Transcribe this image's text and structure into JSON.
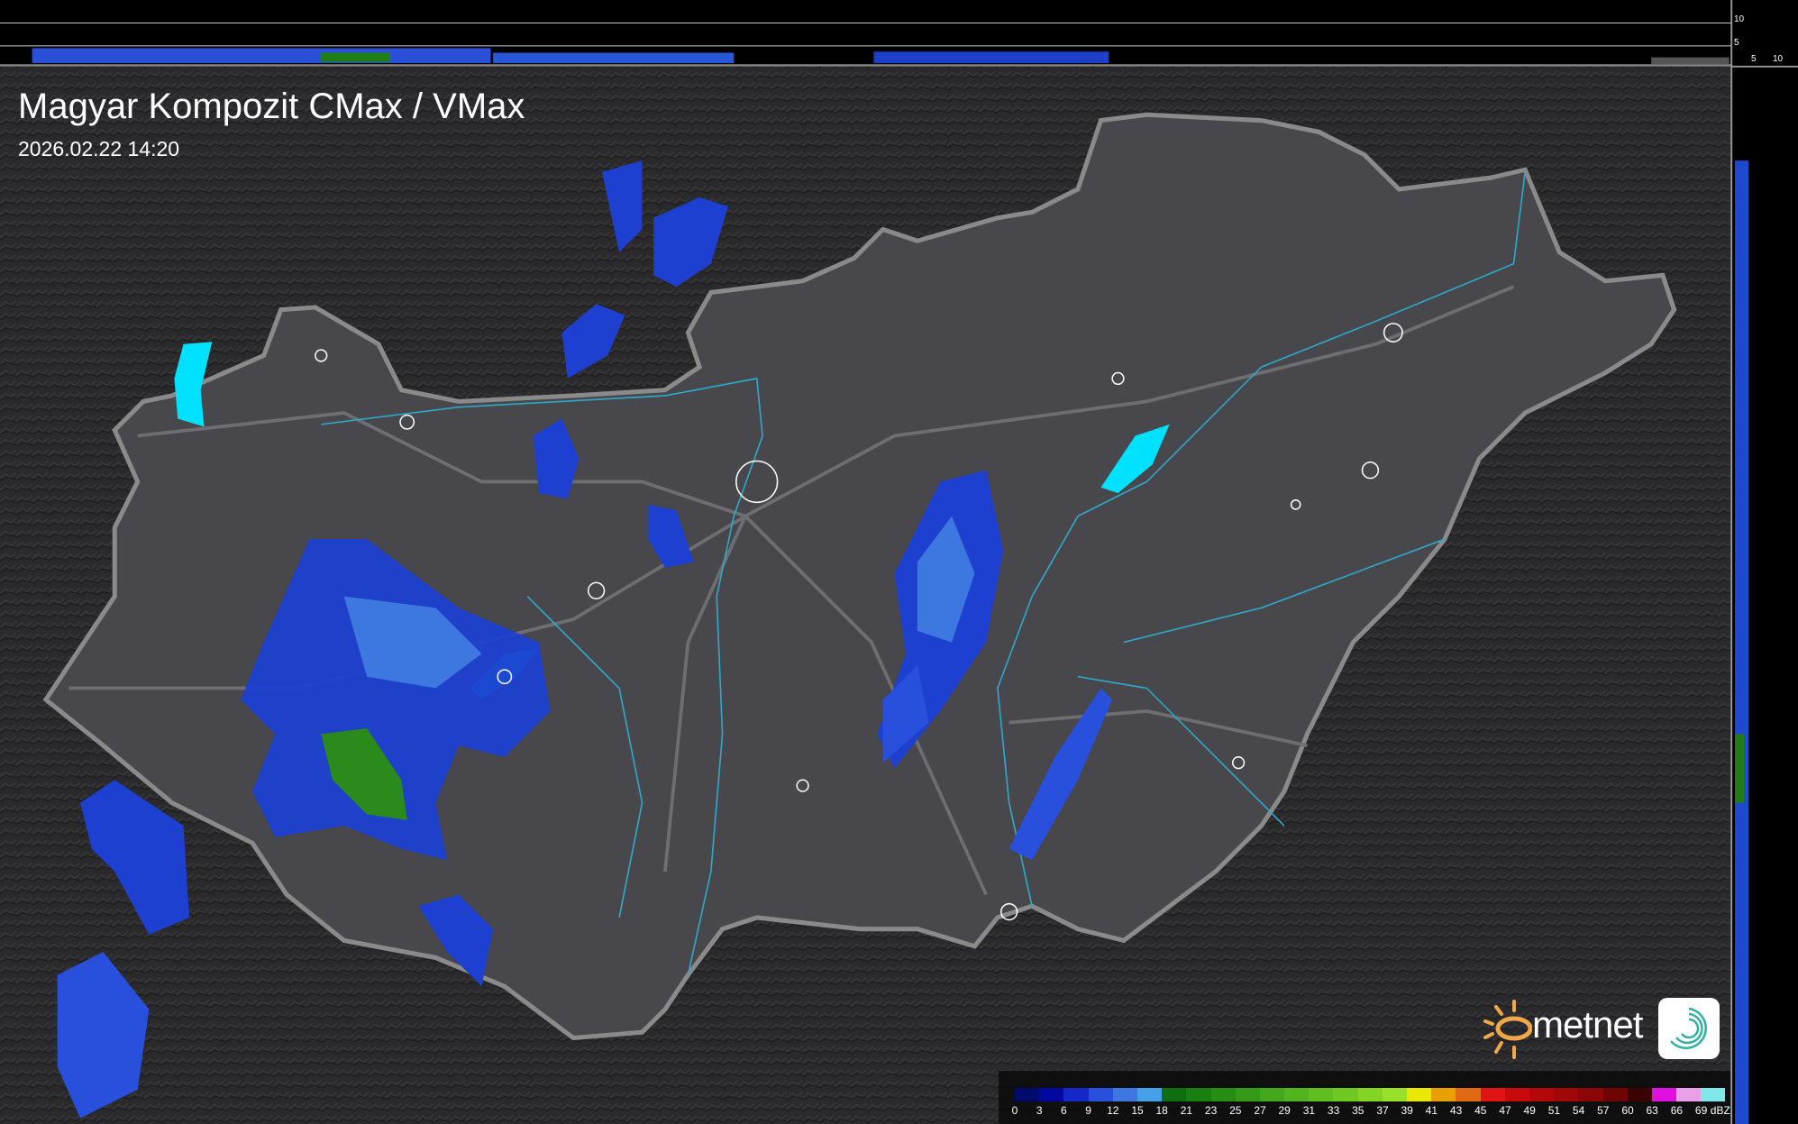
{
  "title": "Magyar Kompozit CMax / VMax",
  "timestamp": "2026.02.22 14:20",
  "legend": {
    "unit": "dBZ",
    "labels": [
      "0",
      "3",
      "6",
      "9",
      "12",
      "15",
      "18",
      "21",
      "23",
      "25",
      "27",
      "29",
      "31",
      "33",
      "35",
      "37",
      "39",
      "41",
      "43",
      "45",
      "47",
      "49",
      "51",
      "54",
      "57",
      "60",
      "63",
      "66",
      "69"
    ],
    "colors": [
      "#000a6a",
      "#0008a0",
      "#1428c8",
      "#2850dc",
      "#3c78e0",
      "#46a0e8",
      "#0f6e0f",
      "#1a7e10",
      "#268c14",
      "#349a18",
      "#44a81c",
      "#52b41e",
      "#60be20",
      "#70c822",
      "#84d424",
      "#98e02a",
      "#e8e800",
      "#e8a000",
      "#e06a14",
      "#e01414",
      "#c80a0a",
      "#b40808",
      "#a00808",
      "#8c0606",
      "#6e0404",
      "#3a0202",
      "#e010e0",
      "#e8a0e8",
      "#80e8e8"
    ]
  },
  "profile": {
    "top_ticks": [
      "10",
      "5"
    ],
    "side_ticks": [
      "5",
      "10"
    ]
  },
  "logo": {
    "text": "metnet"
  },
  "colors": {
    "country_fill": "#48484e",
    "border": "#8a8a8a",
    "river": "#2fa8c8",
    "lake": "#00e0ff",
    "background": "#262628"
  }
}
